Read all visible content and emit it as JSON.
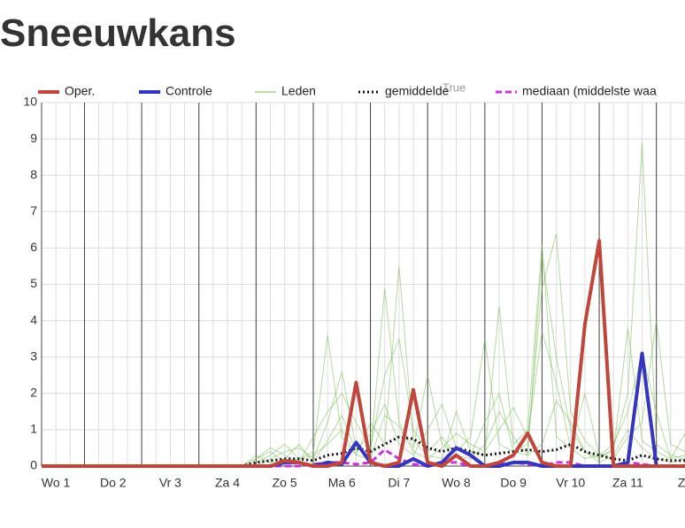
{
  "chart_data": {
    "type": "line",
    "title": "Sneeuwkans",
    "annotation": "True",
    "x": [
      6,
      12,
      18,
      24,
      30,
      36,
      42,
      48,
      54,
      60,
      66,
      72,
      78,
      84,
      90,
      96,
      102,
      108,
      114,
      120,
      126,
      132,
      138,
      144,
      150,
      156,
      162,
      168,
      174,
      180,
      186,
      192,
      198,
      204,
      210,
      216,
      222,
      228,
      234,
      240,
      246,
      252,
      258,
      264,
      270,
      276
    ],
    "xlim": [
      6,
      276
    ],
    "xticks": [
      {
        "value": 12,
        "label": "Wo 1"
      },
      {
        "value": 36,
        "label": "Do 2"
      },
      {
        "value": 60,
        "label": "Vr 3"
      },
      {
        "value": 84,
        "label": "Za 4"
      },
      {
        "value": 108,
        "label": "Zo 5"
      },
      {
        "value": 132,
        "label": "Ma 6"
      },
      {
        "value": 156,
        "label": "Di 7"
      },
      {
        "value": 180,
        "label": "Wo 8"
      },
      {
        "value": 204,
        "label": "Do 9"
      },
      {
        "value": 228,
        "label": "Vr 10"
      },
      {
        "value": 252,
        "label": "Za 11"
      },
      {
        "value": 276,
        "label": "Zo"
      }
    ],
    "ylim": [
      0,
      10
    ],
    "yticks": [
      0,
      1,
      2,
      3,
      4,
      5,
      6,
      7,
      8,
      9,
      10
    ],
    "grid": true,
    "members": {
      "name": "Leden",
      "color": "#79bb55",
      "values": [
        [
          0,
          0,
          0,
          0,
          0,
          0,
          0,
          0,
          0,
          0,
          0,
          0,
          0,
          0,
          0,
          0.2,
          0.5,
          0.3,
          0.1,
          0.8,
          1.5,
          2.0,
          1.2,
          0.5,
          2.5,
          3.5,
          1.0,
          0.4,
          0.8,
          0.3,
          0.2,
          0.6,
          1.5,
          0.8,
          0.3,
          0.6,
          1.8,
          1.2,
          0.4,
          0.1,
          0.3,
          1.0,
          0.5,
          0.2,
          0.1,
          0.2
        ],
        [
          0,
          0,
          0,
          0,
          0,
          0,
          0,
          0,
          0,
          0,
          0,
          0,
          0,
          0,
          0,
          0.1,
          0.3,
          0.6,
          0.2,
          0.4,
          3.6,
          0.8,
          0.3,
          1.2,
          0.6,
          5.5,
          0.7,
          0.3,
          0.2,
          1.5,
          0.4,
          0.3,
          4.4,
          0.6,
          1.0,
          6.1,
          0.8,
          0.5,
          2.0,
          0.3,
          0.4,
          3.8,
          0.7,
          0.4,
          0.2,
          0.3
        ],
        [
          0,
          0,
          0,
          0,
          0,
          0,
          0,
          0,
          0,
          0,
          0,
          0,
          0,
          0,
          0,
          0,
          0.2,
          0.4,
          0.5,
          0.2,
          1.2,
          2.6,
          0.5,
          0.3,
          4.9,
          1.2,
          0.5,
          2.5,
          0.6,
          0.4,
          0.8,
          3.5,
          0.6,
          0.4,
          0.3,
          5.8,
          3.0,
          1.0,
          0.4,
          0.2,
          0.5,
          2.0,
          8.9,
          0.6,
          0.3,
          0.2
        ],
        [
          0,
          0,
          0,
          0,
          0,
          0,
          0,
          0,
          0,
          0,
          0,
          0,
          0,
          0,
          0,
          0.3,
          0.1,
          0.2,
          0.6,
          0.1,
          0.7,
          1.4,
          0.4,
          0.9,
          1.7,
          0.6,
          0.3,
          1.0,
          1.7,
          0.5,
          0.3,
          1.2,
          2.0,
          0.4,
          0.6,
          4.9,
          6.4,
          1.5,
          0.7,
          0.3,
          0.2,
          0.8,
          1.2,
          4.0,
          0.6,
          0.4
        ],
        [
          0,
          0,
          0,
          0,
          0,
          0,
          0,
          0,
          0,
          0,
          0,
          0,
          0,
          0,
          0,
          0.2,
          0.4,
          0.1,
          0.2,
          0.3,
          0.6,
          1.0,
          0.3,
          0.2,
          1.4,
          1.1,
          0.4,
          0.2,
          0.5,
          0.9,
          0.6,
          0.4,
          1.0,
          1.6,
          0.8,
          3.7,
          2.3,
          0.5,
          0.2,
          0.3,
          0.6,
          1.5,
          3.1,
          1.5,
          0.2,
          0.9
        ]
      ]
    },
    "series": [
      {
        "name": "Oper.",
        "color": "#c0453c",
        "style": "solid",
        "values": [
          0,
          0,
          0,
          0,
          0,
          0,
          0,
          0,
          0,
          0,
          0,
          0,
          0,
          0,
          0,
          0,
          0,
          0.15,
          0.1,
          0,
          0,
          0.1,
          2.3,
          0.1,
          0,
          0.1,
          2.1,
          0.1,
          0,
          0.3,
          0,
          0,
          0.1,
          0.3,
          0.9,
          0.1,
          0,
          0,
          3.9,
          6.2,
          0,
          0,
          0,
          0,
          0,
          0
        ]
      },
      {
        "name": "Controle",
        "color": "#3535c0",
        "style": "solid",
        "values": [
          0,
          0,
          0,
          0,
          0,
          0,
          0,
          0,
          0,
          0,
          0,
          0,
          0,
          0,
          0,
          0,
          0,
          0.1,
          0.1,
          0,
          0.1,
          0.05,
          0.65,
          0.1,
          0,
          0,
          0.2,
          0,
          0.1,
          0.5,
          0.3,
          0,
          0,
          0.1,
          0.1,
          0,
          0,
          0,
          0,
          0,
          0,
          0.1,
          3.1,
          0,
          0,
          0
        ]
      },
      {
        "name": "gemiddelde",
        "color": "#111111",
        "style": "dotted",
        "values": [
          0,
          0,
          0,
          0,
          0,
          0,
          0,
          0,
          0,
          0,
          0,
          0,
          0,
          0,
          0,
          0.1,
          0.15,
          0.2,
          0.2,
          0.15,
          0.3,
          0.35,
          0.5,
          0.4,
          0.6,
          0.8,
          0.75,
          0.5,
          0.4,
          0.5,
          0.4,
          0.3,
          0.35,
          0.4,
          0.45,
          0.4,
          0.45,
          0.6,
          0.4,
          0.3,
          0.2,
          0.15,
          0.3,
          0.2,
          0.15,
          0.15
        ]
      },
      {
        "name": "mediaan (middelste waa",
        "color": "#cc33dd",
        "style": "dashed",
        "values": [
          0,
          0,
          0,
          0,
          0,
          0,
          0,
          0,
          0,
          0,
          0,
          0,
          0,
          0,
          0,
          0,
          0,
          0,
          0,
          0.05,
          0.1,
          0.1,
          0.05,
          0.1,
          0.45,
          0.2,
          0.05,
          0,
          0.1,
          0.1,
          0,
          0,
          0.05,
          0.1,
          0.05,
          0,
          0.1,
          0.1,
          0,
          0,
          0,
          0.1,
          0.05,
          0,
          0,
          0
        ]
      }
    ]
  }
}
